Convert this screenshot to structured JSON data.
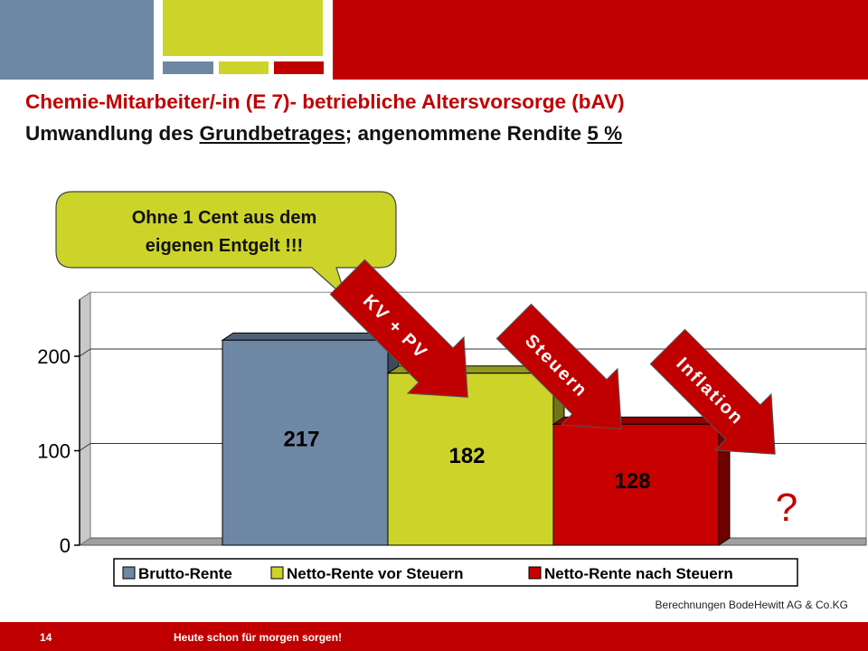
{
  "title_line1": "Chemie-Mitarbeiter/-in (E 7)- betriebliche Altersvorsorge (bAV)",
  "title_line2_pre": "Umwandlung des ",
  "title_line2_underlined": "Grundbetrages",
  "title_line2_mid": "; angenommene Rendite  ",
  "title_line2_rate": "5 %",
  "callout": {
    "line1": "Ohne 1 Cent aus dem",
    "line2": "eigenen Entgelt !!!"
  },
  "arrows": [
    "KV + PV",
    "Steuern",
    "Inflation"
  ],
  "question_mark": "?",
  "source": "Berechnungen BodeHewitt AG & Co.KG",
  "footer": {
    "page_number": "14",
    "slogan": "Heute schon für morgen sorgen!"
  },
  "colors": {
    "accent_red": "#c00000",
    "slate_blue": "#6e87a4",
    "lime": "#ccd42a",
    "chart_red": "#c80000"
  },
  "chart_data": {
    "type": "bar",
    "categories": [
      "Brutto-Rente",
      "Netto-Rente vor Steuern",
      "Netto-Rente nach Steuern"
    ],
    "values": [
      217,
      182,
      128
    ],
    "value_labels": [
      "217",
      "182",
      "128"
    ],
    "ylim": [
      0,
      260
    ],
    "yticks": [
      0,
      100,
      200
    ],
    "ytick_labels": [
      "0",
      "100",
      "200"
    ],
    "legend": [
      "Brutto-Rente",
      "Netto-Rente vor Steuern",
      "Netto-Rente nach Steuern"
    ],
    "legend_position": "bottom",
    "grid": true,
    "style": "3d"
  }
}
